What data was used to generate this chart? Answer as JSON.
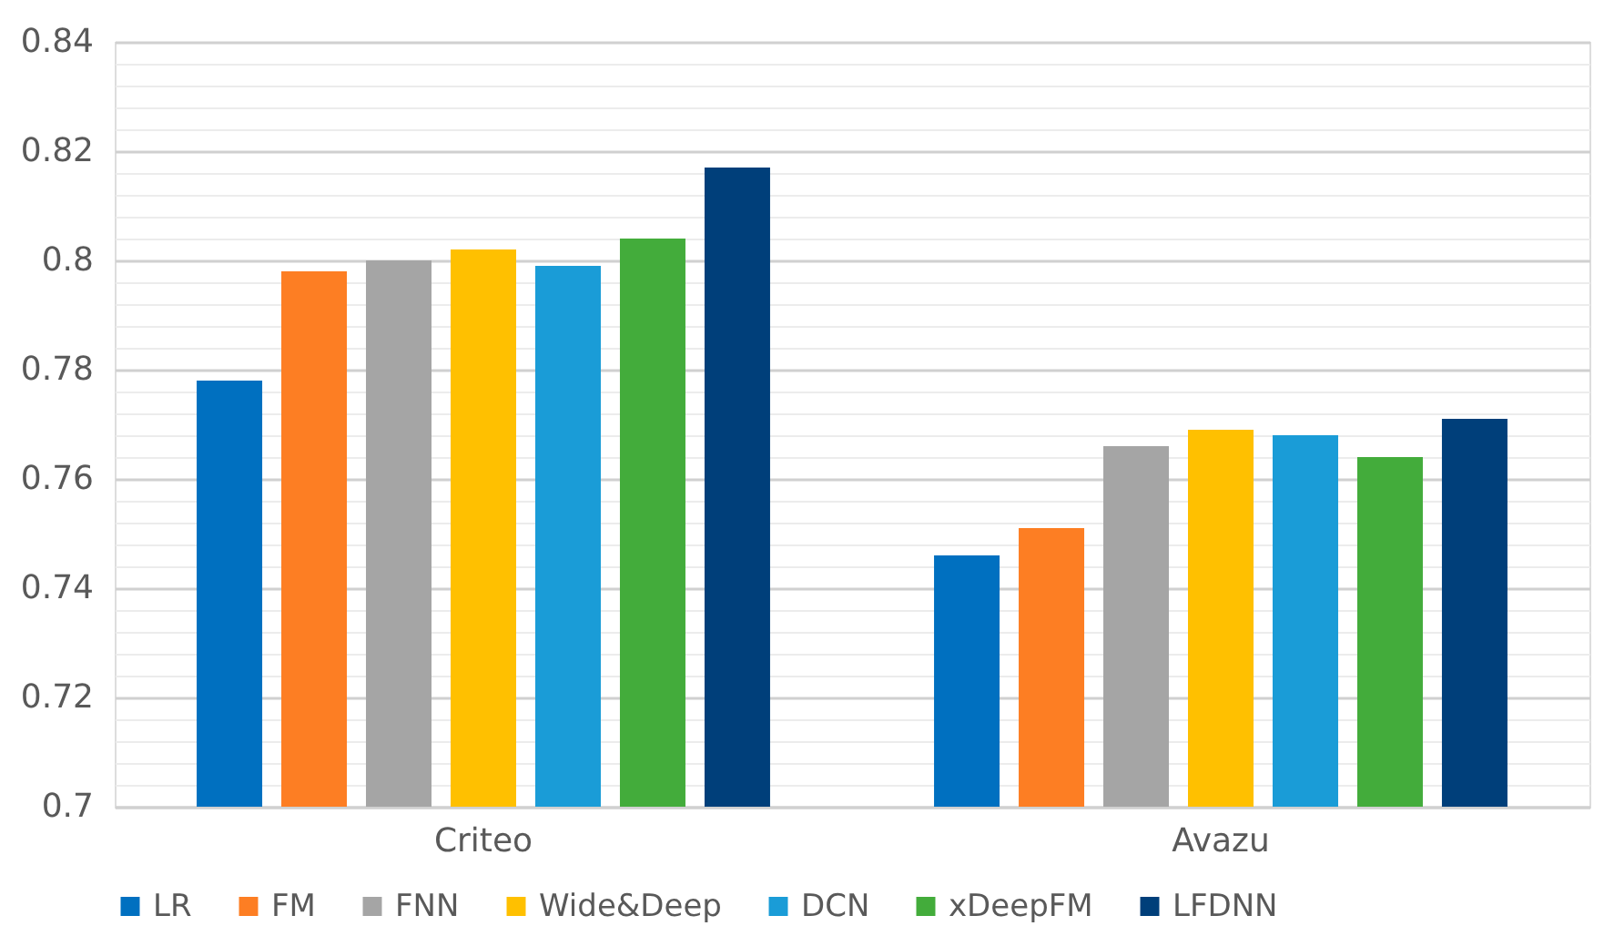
{
  "chart_data": {
    "type": "bar",
    "categories": [
      "Criteo",
      "Avazu"
    ],
    "series": [
      {
        "name": "LR",
        "color": "#0070c0",
        "values": [
          0.778,
          0.746
        ]
      },
      {
        "name": "FM",
        "color": "#fd7e23",
        "values": [
          0.798,
          0.751
        ]
      },
      {
        "name": "FNN",
        "color": "#a5a5a5",
        "values": [
          0.8,
          0.766
        ]
      },
      {
        "name": "Wide&Deep",
        "color": "#ffc000",
        "values": [
          0.802,
          0.769
        ]
      },
      {
        "name": "DCN",
        "color": "#1a9cd7",
        "values": [
          0.799,
          0.768
        ]
      },
      {
        "name": "xDeepFM",
        "color": "#43ac3b",
        "values": [
          0.804,
          0.764
        ]
      },
      {
        "name": "LFDNN",
        "color": "#003f7a",
        "values": [
          0.817,
          0.771
        ]
      }
    ],
    "ylim": [
      0.7,
      0.84
    ],
    "yticks": [
      0.7,
      {
        "value": 0.704,
        "label": null
      },
      {
        "value": 0.708,
        "label": null
      },
      {
        "value": 0.712,
        "label": null
      },
      {
        "value": 0.716,
        "label": null
      },
      0.72,
      {
        "value": 0.724,
        "label": null
      },
      {
        "value": 0.728,
        "label": null
      },
      {
        "value": 0.732,
        "label": null
      },
      {
        "value": 0.736,
        "label": null
      },
      0.74,
      {
        "value": 0.744,
        "label": null
      },
      {
        "value": 0.748,
        "label": null
      },
      {
        "value": 0.752,
        "label": null
      },
      {
        "value": 0.756,
        "label": null
      },
      0.76,
      {
        "value": 0.764,
        "label": null
      },
      {
        "value": 0.768,
        "label": null
      },
      {
        "value": 0.772,
        "label": null
      },
      {
        "value": 0.776,
        "label": null
      },
      0.78,
      {
        "value": 0.784,
        "label": null
      },
      {
        "value": 0.788,
        "label": null
      },
      {
        "value": 0.792,
        "label": null
      },
      {
        "value": 0.796,
        "label": null
      },
      0.8,
      {
        "value": 0.804,
        "label": null
      },
      {
        "value": 0.808,
        "label": null
      },
      {
        "value": 0.812,
        "label": null
      },
      {
        "value": 0.816,
        "label": null
      },
      0.82,
      {
        "value": 0.824,
        "label": null
      },
      {
        "value": 0.828,
        "label": null
      },
      {
        "value": 0.832,
        "label": null
      },
      {
        "value": 0.836,
        "label": null
      },
      0.84
    ],
    "grid": "y",
    "legend": "bottom"
  }
}
